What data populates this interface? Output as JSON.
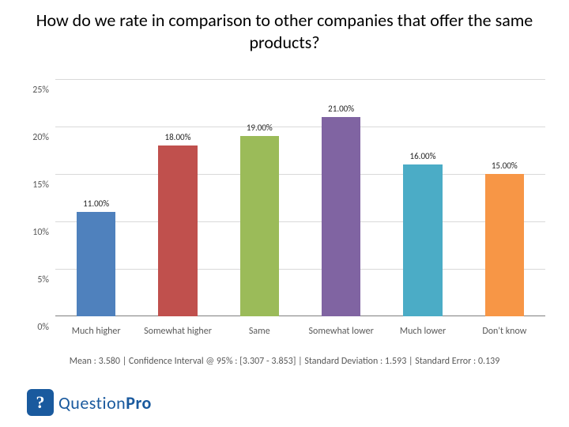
{
  "title": "How do we rate in comparison to other companies that offer the same products?",
  "chart": {
    "type": "bar",
    "ylim": [
      0,
      25
    ],
    "ytick_step": 5,
    "y_suffix": "%",
    "background_color": "#ffffff",
    "grid_color": "#d9d9d9",
    "axis_color": "#808080",
    "axis_fontsize": 12,
    "datalabel_fontsize": 11,
    "bar_width_ratio": 0.48,
    "categories": [
      "Much higher",
      "Somewhat higher",
      "Same",
      "Somewhat lower",
      "Much lower",
      "Don't know"
    ],
    "values": [
      11.0,
      18.0,
      19.0,
      21.0,
      16.0,
      15.0
    ],
    "value_labels": [
      "11.00%",
      "18.00%",
      "19.00%",
      "21.00%",
      "16.00%",
      "15.00%"
    ],
    "bar_colors": [
      "#4f81bd",
      "#c0504d",
      "#9bbb59",
      "#8064a2",
      "#4bacc6",
      "#f79646"
    ]
  },
  "stats_line": "Mean : 3.580  |  Confidence Interval @ 95% : [3.307 - 3.853]  |  Standard Deviation : 1.593  |  Standard Error : 0.139",
  "logo": {
    "mark_letter": "?",
    "text_thin": "Question",
    "text_bold": "Pro",
    "mark_bg": "#1a5a9e",
    "text_color": "#1a5a9e"
  }
}
